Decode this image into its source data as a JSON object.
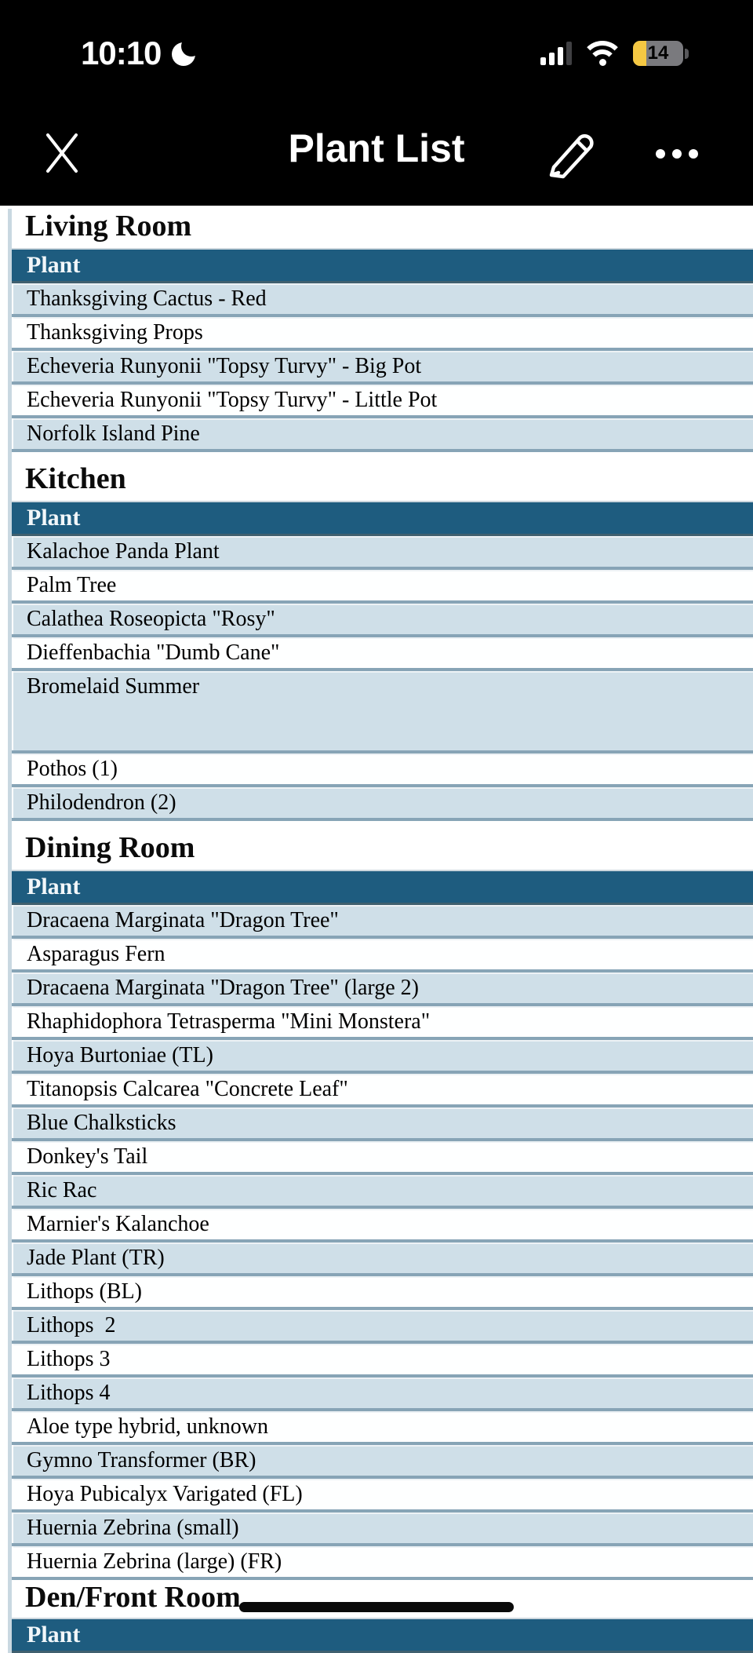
{
  "status_bar": {
    "time": "10:10",
    "focus_mode": "do-not-disturb-moon",
    "signal_bars_total": 4,
    "signal_bars_active": 3,
    "wifi_strength": "full",
    "battery_percent": "14",
    "battery_low_power_color": "#f5c843"
  },
  "nav": {
    "title": "Plant List",
    "close_button": "close",
    "edit_button": "edit-pencil",
    "more_button": "more-ellipsis"
  },
  "colors": {
    "top_bar_bg": "#000000",
    "table_header_bg": "#1e5c7f",
    "row_blue": "#cfdfe8",
    "row_white": "#feffff",
    "row_separator": "#87a4b6",
    "page_rule": "#c9d8e1"
  },
  "document": {
    "sections": [
      {
        "heading": "Living Room",
        "column_header": "Plant",
        "rows": [
          {
            "label": "Thanksgiving Cactus - Red"
          },
          {
            "label": "Thanksgiving Props"
          },
          {
            "label": "Echeveria Runyonii \"Topsy Turvy\" - Big Pot"
          },
          {
            "label": "Echeveria Runyonii \"Topsy Turvy\" - Little Pot"
          },
          {
            "label": "Norfolk Island Pine"
          }
        ]
      },
      {
        "heading": "Kitchen",
        "column_header": "Plant",
        "rows": [
          {
            "label": "Kalachoe Panda Plant"
          },
          {
            "label": "Palm Tree"
          },
          {
            "label": "Calathea Roseopicta \"Rosy\""
          },
          {
            "label": "Dieffenbachia \"Dumb Cane\""
          },
          {
            "label": "Bromelaid Summer",
            "tall": true
          },
          {
            "label": "Pothos (1)"
          },
          {
            "label": "Philodendron (2)"
          }
        ]
      },
      {
        "heading": "Dining Room",
        "column_header": "Plant",
        "rows": [
          {
            "label": "Dracaena Marginata \"Dragon Tree\""
          },
          {
            "label": "Asparagus Fern"
          },
          {
            "label": "Dracaena Marginata \"Dragon Tree\" (large 2)"
          },
          {
            "label": "Rhaphidophora Tetrasperma \"Mini Monstera\""
          },
          {
            "label": "Hoya Burtoniae (TL)"
          },
          {
            "label": "Titanopsis Calcarea \"Concrete Leaf\""
          },
          {
            "label": "Blue Chalksticks"
          },
          {
            "label": "Donkey's Tail"
          },
          {
            "label": "Ric Rac"
          },
          {
            "label": "Marnier's Kalanchoe"
          },
          {
            "label": "Jade Plant (TR)"
          },
          {
            "label": "Lithops (BL)"
          },
          {
            "label": "Lithops  2"
          },
          {
            "label": "Lithops 3"
          },
          {
            "label": "Lithops 4"
          },
          {
            "label": "Aloe type hybrid, unknown"
          },
          {
            "label": "Gymno Transformer (BR)"
          },
          {
            "label": "Hoya Pubicalyx Varigated (FL)"
          },
          {
            "label": "Huernia Zebrina (small)"
          },
          {
            "label": "Huernia Zebrina (large) (FR)"
          }
        ]
      },
      {
        "heading": "Den/Front Room",
        "column_header": "Plant",
        "rows": [],
        "last": true
      }
    ]
  }
}
